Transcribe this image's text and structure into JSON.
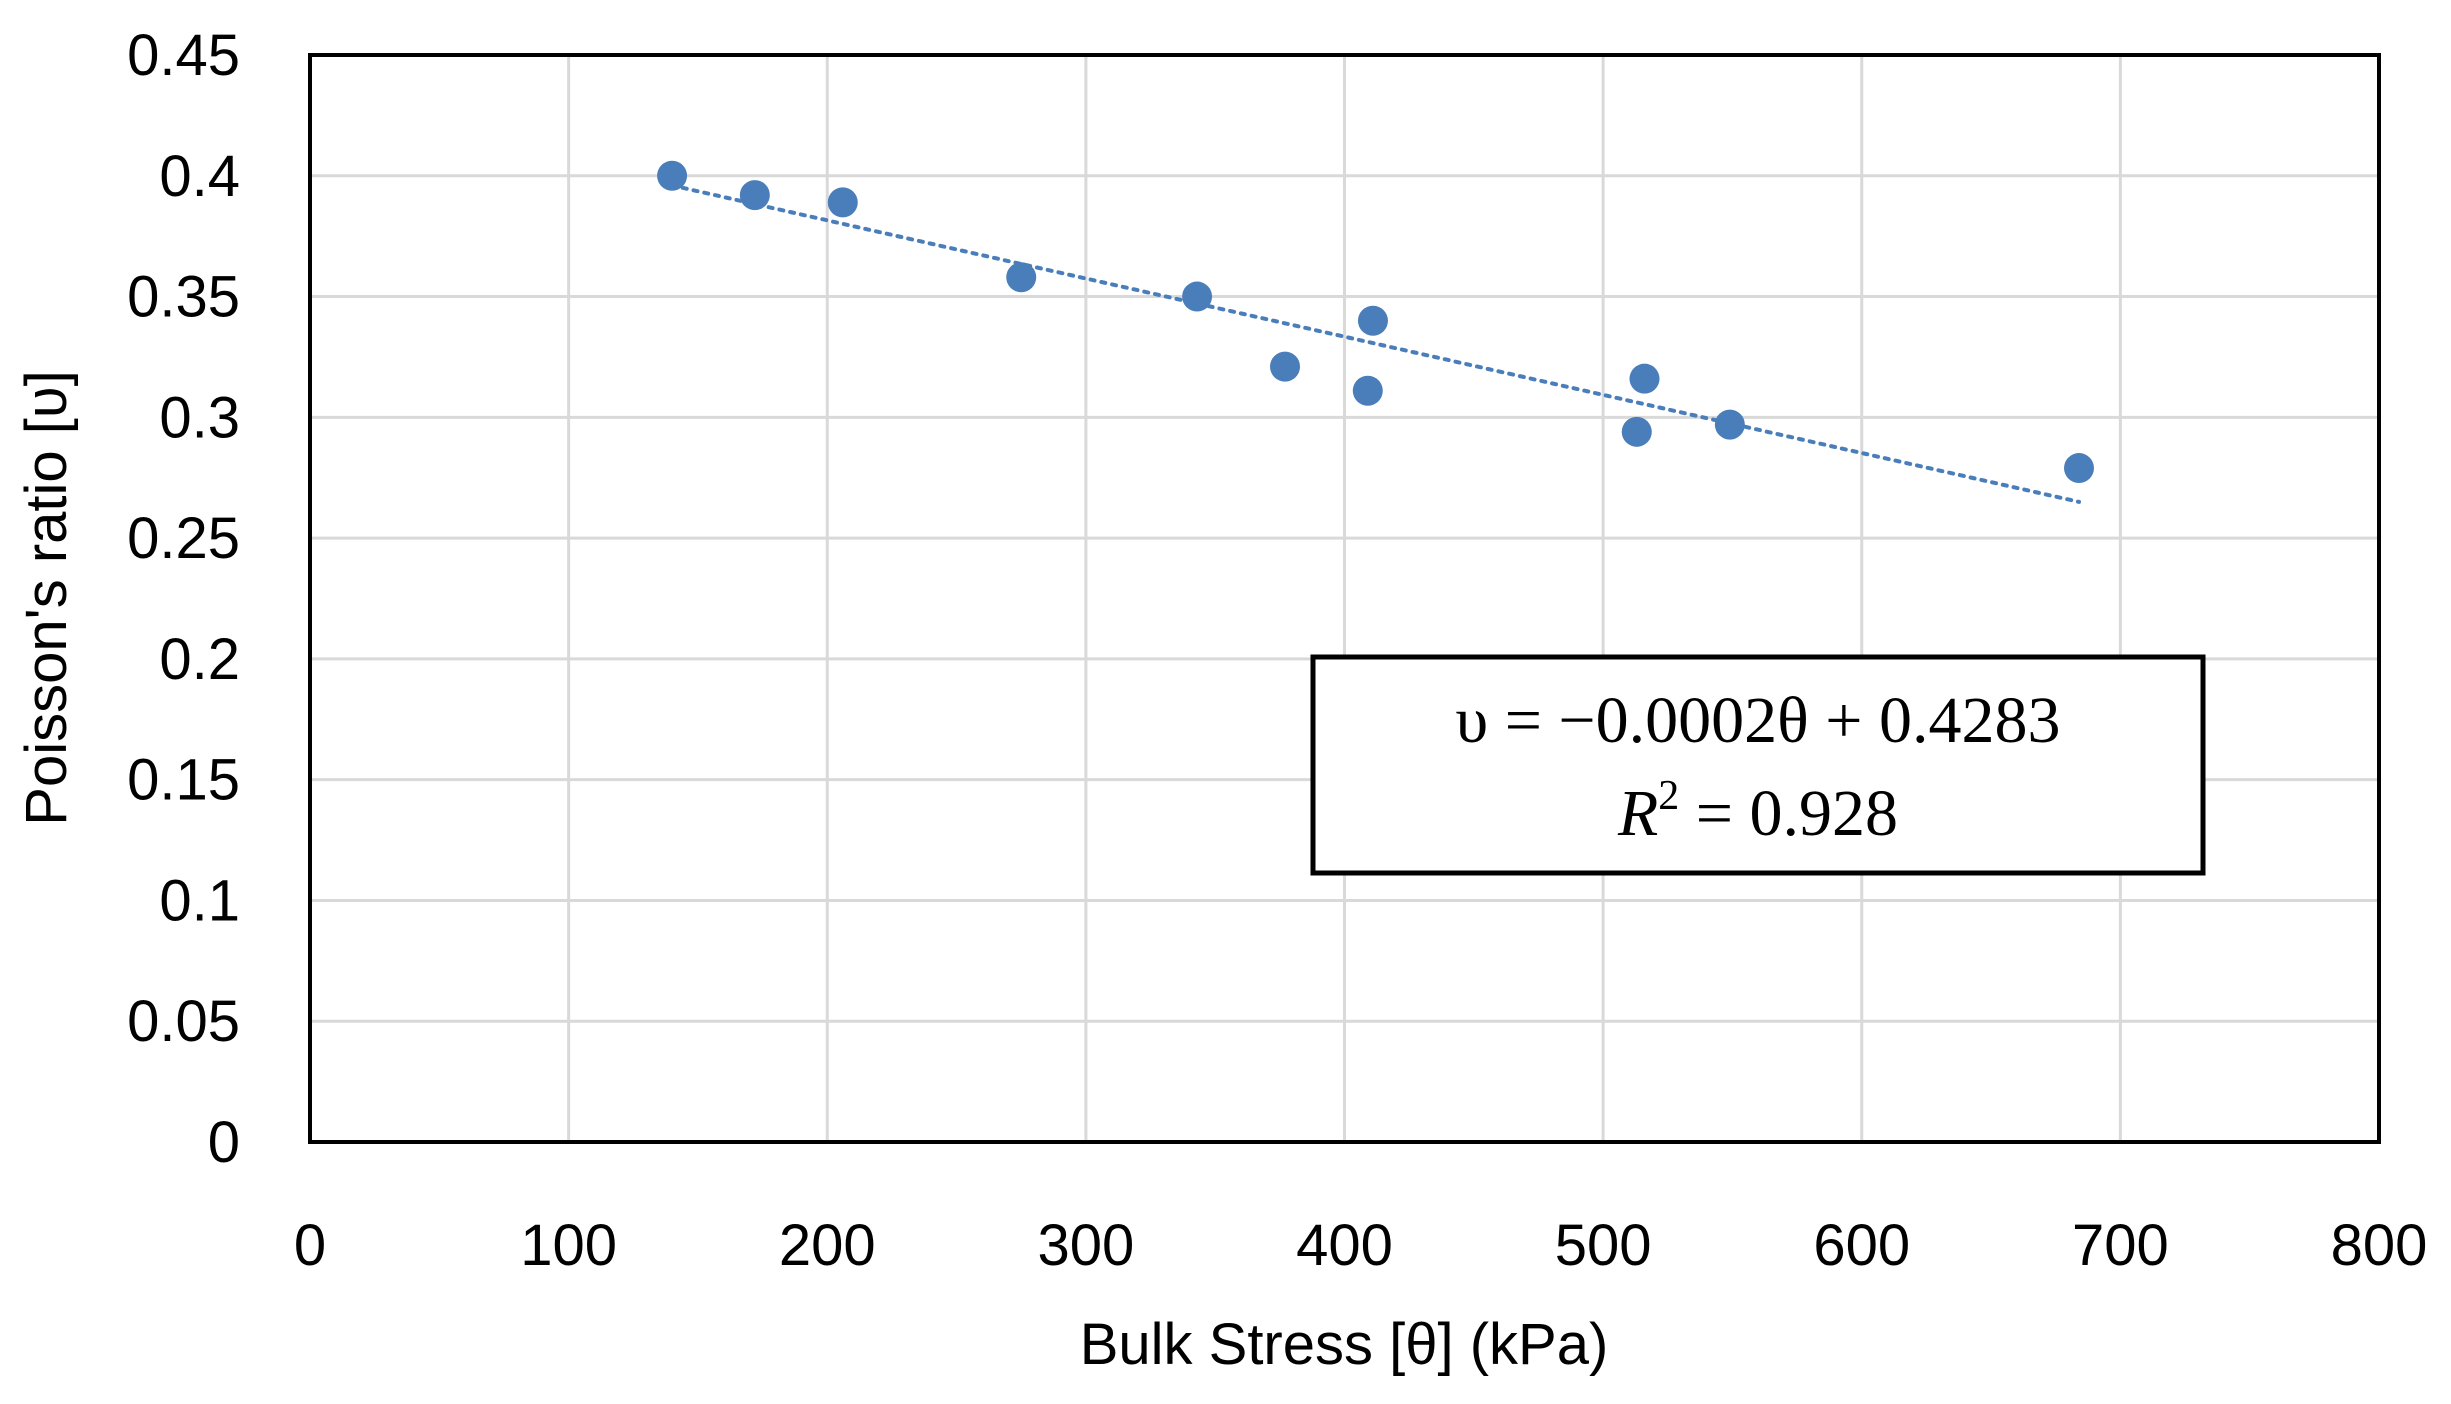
{
  "chart_data": {
    "type": "scatter",
    "title": "",
    "xlabel": "Bulk Stress [θ] (kPa)",
    "ylabel": "Poisson's ratio [υ]",
    "xlim": [
      0,
      800
    ],
    "ylim": [
      0,
      0.45
    ],
    "xticks": [
      0,
      100,
      200,
      300,
      400,
      500,
      600,
      700,
      800
    ],
    "yticks": [
      0,
      0.05,
      0.1,
      0.15,
      0.2,
      0.25,
      0.3,
      0.35,
      0.4,
      0.45
    ],
    "xtick_labels": [
      "0",
      "100",
      "200",
      "300",
      "400",
      "500",
      "600",
      "700",
      "800"
    ],
    "ytick_labels": [
      "0",
      "0.05",
      "0.1",
      "0.15",
      "0.2",
      "0.25",
      "0.3",
      "0.35",
      "0.4",
      "0.45"
    ],
    "grid": true,
    "series": [
      {
        "name": "data",
        "x": [
          140,
          172,
          206,
          275,
          343,
          377,
          409,
          411,
          513,
          516,
          549,
          684
        ],
        "y": [
          0.4,
          0.392,
          0.389,
          0.358,
          0.35,
          0.321,
          0.311,
          0.34,
          0.294,
          0.316,
          0.297,
          0.279
        ],
        "color": "#4A7EBB"
      }
    ],
    "trendline": {
      "type": "linear",
      "x_range": [
        140,
        684
      ],
      "y_at_ends": [
        0.396,
        0.265
      ],
      "color": "#4A7EBB",
      "style": "dotted"
    },
    "annotation": {
      "line1": "υ = −0.0002θ + 0.4283",
      "line2_base": "R",
      "line2_sup": "2",
      "line2_rest": " = 0.928",
      "placement": "center-right"
    }
  }
}
